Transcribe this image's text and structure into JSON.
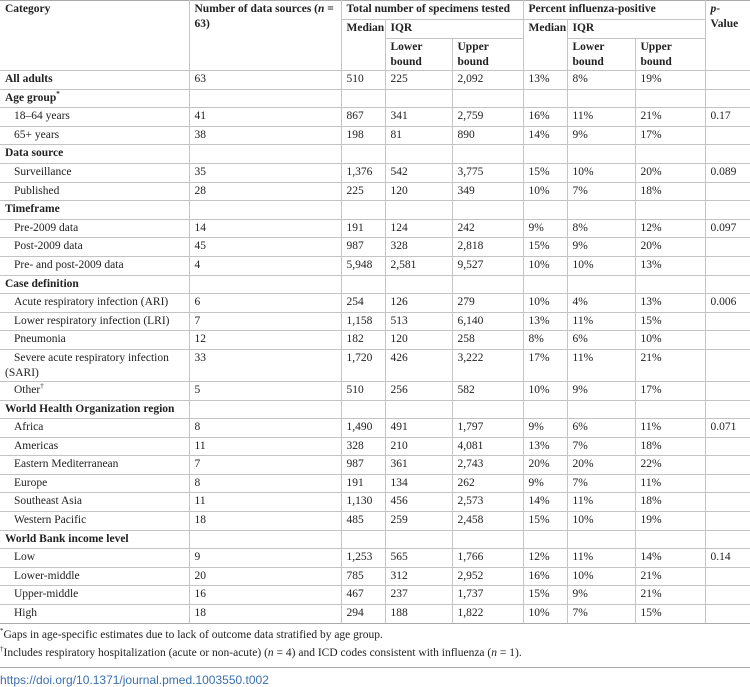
{
  "header": {
    "category": "Category",
    "num_sources": "Number of data sources (n = 63)",
    "num_sources_pre": "Number of data sources (",
    "num_sources_n": "n",
    "num_sources_post": " = 63)",
    "total_specimens": "Total number of specimens tested",
    "percent_positive": "Percent influenza-positive",
    "p_value_p": "p",
    "p_value_rest": "-Value",
    "median": "Median",
    "iqr": "IQR",
    "lower_bound": "Lower bound",
    "upper_bound": "Upper bound"
  },
  "rows": [
    {
      "type": "cat",
      "label": "All adults",
      "n": "63",
      "med": "510",
      "lo": "225",
      "hi": "2,092",
      "pmed": "13%",
      "plo": "8%",
      "phi": "19%",
      "p": ""
    },
    {
      "type": "cat",
      "label": "Age group",
      "sup": "*"
    },
    {
      "type": "sub",
      "label": "18–64 years",
      "n": "41",
      "med": "867",
      "lo": "341",
      "hi": "2,759",
      "pmed": "16%",
      "plo": "11%",
      "phi": "21%",
      "p": "0.17"
    },
    {
      "type": "sub",
      "label": "65+ years",
      "n": "38",
      "med": "198",
      "lo": "81",
      "hi": "890",
      "pmed": "14%",
      "plo": "9%",
      "phi": "17%",
      "p": ""
    },
    {
      "type": "cat",
      "label": "Data source"
    },
    {
      "type": "sub",
      "label": "Surveillance",
      "n": "35",
      "med": "1,376",
      "lo": "542",
      "hi": "3,775",
      "pmed": "15%",
      "plo": "10%",
      "phi": "20%",
      "p": "0.089"
    },
    {
      "type": "sub",
      "label": "Published",
      "n": "28",
      "med": "225",
      "lo": "120",
      "hi": "349",
      "pmed": "10%",
      "plo": "7%",
      "phi": "18%",
      "p": ""
    },
    {
      "type": "cat",
      "label": "Timeframe"
    },
    {
      "type": "sub",
      "label": "Pre-2009 data",
      "n": "14",
      "med": "191",
      "lo": "124",
      "hi": "242",
      "pmed": "9%",
      "plo": "8%",
      "phi": "12%",
      "p": "0.097"
    },
    {
      "type": "sub",
      "label": "Post-2009 data",
      "n": "45",
      "med": "987",
      "lo": "328",
      "hi": "2,818",
      "pmed": "15%",
      "plo": "9%",
      "phi": "20%",
      "p": ""
    },
    {
      "type": "sub",
      "label": "Pre- and post-2009 data",
      "n": "4",
      "med": "5,948",
      "lo": "2,581",
      "hi": "9,527",
      "pmed": "10%",
      "plo": "10%",
      "phi": "13%",
      "p": ""
    },
    {
      "type": "cat",
      "label": "Case definition"
    },
    {
      "type": "sub",
      "label": "Acute respiratory infection (ARI)",
      "n": "6",
      "med": "254",
      "lo": "126",
      "hi": "279",
      "pmed": "10%",
      "plo": "4%",
      "phi": "13%",
      "p": "0.006"
    },
    {
      "type": "sub",
      "label": "Lower respiratory infection (LRI)",
      "n": "7",
      "med": "1,158",
      "lo": "513",
      "hi": "6,140",
      "pmed": "13%",
      "plo": "11%",
      "phi": "15%",
      "p": ""
    },
    {
      "type": "sub",
      "label": "Pneumonia",
      "n": "12",
      "med": "182",
      "lo": "120",
      "hi": "258",
      "pmed": "8%",
      "plo": "6%",
      "phi": "10%",
      "p": ""
    },
    {
      "type": "sub",
      "wrap": true,
      "label": "Severe acute respiratory infection (SARI)",
      "n": "33",
      "med": "1,720",
      "lo": "426",
      "hi": "3,222",
      "pmed": "17%",
      "plo": "11%",
      "phi": "21%",
      "p": ""
    },
    {
      "type": "sub",
      "label": "Other",
      "sup": "†",
      "n": "5",
      "med": "510",
      "lo": "256",
      "hi": "582",
      "pmed": "10%",
      "plo": "9%",
      "phi": "17%",
      "p": ""
    },
    {
      "type": "cat",
      "label": "World Health Organization region"
    },
    {
      "type": "sub",
      "label": "Africa",
      "n": "8",
      "med": "1,490",
      "lo": "491",
      "hi": "1,797",
      "pmed": "9%",
      "plo": "6%",
      "phi": "11%",
      "p": "0.071"
    },
    {
      "type": "sub",
      "label": "Americas",
      "n": "11",
      "med": "328",
      "lo": "210",
      "hi": "4,081",
      "pmed": "13%",
      "plo": "7%",
      "phi": "18%",
      "p": ""
    },
    {
      "type": "sub",
      "label": "Eastern Mediterranean",
      "n": "7",
      "med": "987",
      "lo": "361",
      "hi": "2,743",
      "pmed": "20%",
      "plo": "20%",
      "phi": "22%",
      "p": ""
    },
    {
      "type": "sub",
      "label": "Europe",
      "n": "8",
      "med": "191",
      "lo": "134",
      "hi": "262",
      "pmed": "9%",
      "plo": "7%",
      "phi": "11%",
      "p": ""
    },
    {
      "type": "sub",
      "label": "Southeast Asia",
      "n": "11",
      "med": "1,130",
      "lo": "456",
      "hi": "2,573",
      "pmed": "14%",
      "plo": "11%",
      "phi": "18%",
      "p": ""
    },
    {
      "type": "sub",
      "label": "Western Pacific",
      "n": "18",
      "med": "485",
      "lo": "259",
      "hi": "2,458",
      "pmed": "15%",
      "plo": "10%",
      "phi": "19%",
      "p": ""
    },
    {
      "type": "cat",
      "label": "World Bank income level"
    },
    {
      "type": "sub",
      "label": "Low",
      "n": "9",
      "med": "1,253",
      "lo": "565",
      "hi": "1,766",
      "pmed": "12%",
      "plo": "11%",
      "phi": "14%",
      "p": "0.14"
    },
    {
      "type": "sub",
      "label": "Lower-middle",
      "n": "20",
      "med": "785",
      "lo": "312",
      "hi": "2,952",
      "pmed": "16%",
      "plo": "10%",
      "phi": "21%",
      "p": ""
    },
    {
      "type": "sub",
      "label": "Upper-middle",
      "n": "16",
      "med": "467",
      "lo": "237",
      "hi": "1,737",
      "pmed": "15%",
      "plo": "9%",
      "phi": "21%",
      "p": ""
    },
    {
      "type": "sub",
      "label": "High",
      "n": "18",
      "med": "294",
      "lo": "188",
      "hi": "1,822",
      "pmed": "10%",
      "plo": "7%",
      "phi": "15%",
      "p": ""
    }
  ],
  "footnotes": {
    "f1_mark": "*",
    "f1_text": "Gaps in age-specific estimates due to lack of outcome data stratified by age group.",
    "f2_mark": "†",
    "f2_a": "Includes respiratory hospitalization (acute or non-acute) (",
    "f2_n1": "n",
    "f2_b": " = 4) and ICD codes consistent with influenza (",
    "f2_n2": "n",
    "f2_c": " = 1)."
  },
  "doi": "https://doi.org/10.1371/journal.pmed.1003550.t002"
}
